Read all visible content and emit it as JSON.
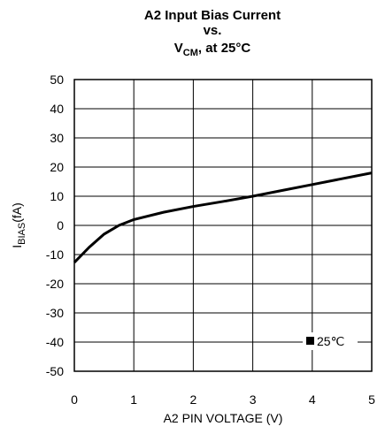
{
  "chart_data": {
    "type": "line",
    "title": {
      "lines": [
        "A2 Input Bias Current",
        "vs."
      ],
      "var": "V",
      "sub": "CM",
      "rest": ", at 25°C"
    },
    "ylabel": {
      "main": "I",
      "sub": "BIAS",
      "rest": "(fA)"
    },
    "xlabel": "A2 PIN VOLTAGE (V)",
    "x": [
      0,
      0.25,
      0.5,
      0.75,
      1,
      1.5,
      2,
      2.5,
      3,
      3.5,
      4,
      4.5,
      5
    ],
    "series": [
      {
        "name": "25℃",
        "color": "#000000",
        "values": [
          -12.7,
          -7.5,
          -3,
          0,
          2,
          4.5,
          6.5,
          8.2,
          10,
          12,
          14,
          16,
          18
        ]
      }
    ],
    "xlim": [
      0,
      5
    ],
    "xticks": [
      0,
      1,
      2,
      3,
      4,
      5
    ],
    "ylim": [
      -50,
      50
    ],
    "yticks": [
      -50,
      -40,
      -30,
      -20,
      -10,
      0,
      10,
      20,
      30,
      40,
      50
    ],
    "grid": true,
    "legend": "lower right"
  }
}
